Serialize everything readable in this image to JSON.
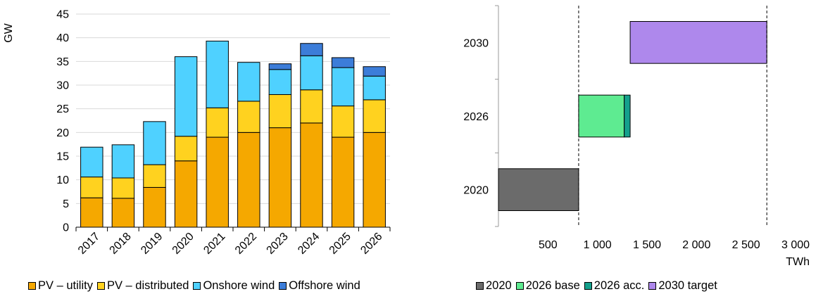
{
  "charts": [
    {
      "type": "bar",
      "stacked": true,
      "ylabel": "GW",
      "ylim": [
        0,
        45
      ],
      "yticks": [
        0,
        5,
        10,
        15,
        20,
        25,
        30,
        35,
        40,
        45
      ],
      "grid": "horizontal",
      "legend_position": "bottom",
      "categories": [
        "2017",
        "2018",
        "2019",
        "2020",
        "2021",
        "2022",
        "2023",
        "2024",
        "2025",
        "2026"
      ],
      "series": [
        {
          "name": "PV – utility",
          "color": "#F5A800",
          "values": [
            6.2,
            6.1,
            8.4,
            14.0,
            19.0,
            20.0,
            21.0,
            22.0,
            19.0,
            20.0
          ]
        },
        {
          "name": "PV – distributed",
          "color": "#FFD21F",
          "values": [
            4.4,
            4.3,
            4.8,
            5.2,
            6.2,
            6.6,
            7.0,
            7.0,
            6.6,
            6.9
          ]
        },
        {
          "name": "Onshore wind",
          "color": "#4FD1FF",
          "values": [
            6.3,
            7.0,
            9.1,
            16.8,
            14.1,
            8.2,
            5.3,
            7.2,
            8.1,
            5.0
          ]
        },
        {
          "name": "Offshore wind",
          "color": "#3C7DD9",
          "values": [
            0,
            0,
            0,
            0,
            0,
            0,
            1.2,
            2.6,
            2.1,
            2.0
          ]
        }
      ]
    },
    {
      "type": "bar",
      "orientation": "horizontal",
      "floating": true,
      "xlabel": "TWh",
      "xlim": [
        0,
        3000
      ],
      "xticks": [
        500,
        1000,
        1500,
        2000,
        2500,
        3000
      ],
      "xtick_labels": [
        "500",
        "1 000",
        "1 500",
        "2 000",
        "2 500",
        "3 000"
      ],
      "categories": [
        "2020",
        "2026",
        "2030"
      ],
      "reference_lines": [
        810,
        2710
      ],
      "legend_position": "bottom",
      "series": [
        {
          "name": "2020",
          "color": "#6B6B6B",
          "category": "2020",
          "start": 0,
          "end": 810
        },
        {
          "name": "2026 base",
          "color": "#5EEB91",
          "category": "2026",
          "start": 810,
          "end": 1270
        },
        {
          "name": "2026 acc.",
          "color": "#14A08C",
          "category": "2026",
          "start": 1270,
          "end": 1330
        },
        {
          "name": "2030 target",
          "color": "#AE88EC",
          "category": "2030",
          "start": 1330,
          "end": 2710
        }
      ]
    }
  ]
}
